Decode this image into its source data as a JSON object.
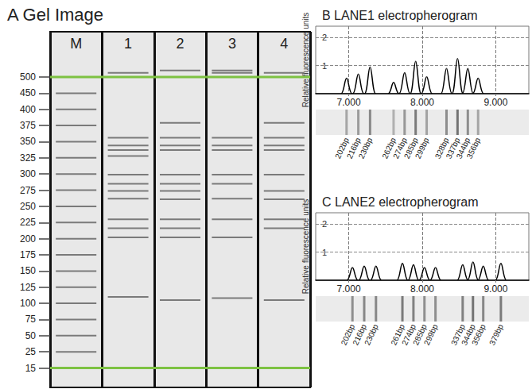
{
  "chart_data": [
    {
      "type": "gel",
      "title": "A Gel Image",
      "color": "#7a7a7a",
      "series": [
        {
          "name": "M",
          "values": [
            25,
            50,
            75,
            100,
            125,
            150,
            175,
            200,
            225,
            250,
            275,
            300,
            325,
            350,
            375,
            400,
            450
          ]
        },
        {
          "name": "1",
          "values": [
            110,
            202,
            216,
            230,
            262,
            274,
            285,
            299,
            328,
            337,
            344,
            356,
            513
          ]
        },
        {
          "name": "2",
          "values": [
            105,
            202,
            216,
            230,
            261,
            274,
            285,
            299,
            337,
            344,
            356,
            379,
            520
          ]
        },
        {
          "name": "3",
          "values": [
            108,
            202,
            230,
            262,
            285,
            299,
            337,
            344,
            356,
            513,
            520
          ]
        },
        {
          "name": "4",
          "values": [
            105,
            216,
            230,
            261,
            274,
            299,
            337,
            344,
            356,
            379,
            513
          ]
        }
      ],
      "markers": {
        "values": [
          15,
          500
        ],
        "color": "#7dc242"
      },
      "ylim": [
        3,
        640
      ],
      "yticks": [
        500,
        450,
        400,
        375,
        350,
        325,
        300,
        275,
        250,
        225,
        200,
        175,
        150,
        125,
        100,
        75,
        50,
        25,
        15
      ]
    },
    {
      "type": "electropherogram",
      "title": "B LANE1 electropherogram",
      "ylabel": "Relative fluorescence units",
      "color": "#000000",
      "grid": true,
      "x": [
        6.97,
        7.13,
        7.29,
        7.61,
        7.76,
        7.91,
        8.06,
        8.33,
        8.48,
        8.62,
        8.76
      ],
      "values": [
        0.55,
        0.7,
        0.95,
        0.4,
        0.75,
        1.15,
        0.6,
        0.9,
        1.25,
        0.9,
        0.55
      ],
      "band_labels": [
        "202bp",
        "216bp",
        "230bp",
        "262bp",
        "274bp",
        "285bp",
        "299bp",
        "328bp",
        "337bp",
        "344bp",
        "356bp"
      ],
      "xlim": [
        6.55,
        9.45
      ],
      "xticks": [
        {
          "value": 7,
          "label": "7.000"
        },
        {
          "value": 8,
          "label": "8.000"
        },
        {
          "value": 9,
          "label": "9.000"
        }
      ],
      "ylim": [
        0,
        2.4
      ],
      "yticks": [
        1,
        2
      ]
    },
    {
      "type": "electropherogram",
      "title": "C LANE2 electropherogram",
      "ylabel": "Relative fluorescence units",
      "color": "#000000",
      "grid": true,
      "x": [
        7.05,
        7.21,
        7.37,
        7.73,
        7.88,
        8.03,
        8.18,
        8.55,
        8.69,
        8.83,
        9.07
      ],
      "values": [
        0.45,
        0.5,
        0.5,
        0.6,
        0.55,
        0.45,
        0.45,
        0.55,
        0.65,
        0.5,
        0.6
      ],
      "band_labels": [
        "202bp",
        "216bp",
        "230bp",
        "261bp",
        "274bp",
        "285bp",
        "299bp",
        "337bp",
        "344bp",
        "356bp",
        "379bp"
      ],
      "xlim": [
        6.55,
        9.45
      ],
      "xticks": [
        {
          "value": 7,
          "label": "7.000"
        },
        {
          "value": 8,
          "label": "8.000"
        },
        {
          "value": 9,
          "label": "9.000"
        }
      ],
      "ylim": [
        0,
        2.4
      ],
      "yticks": [
        1,
        2
      ]
    }
  ]
}
